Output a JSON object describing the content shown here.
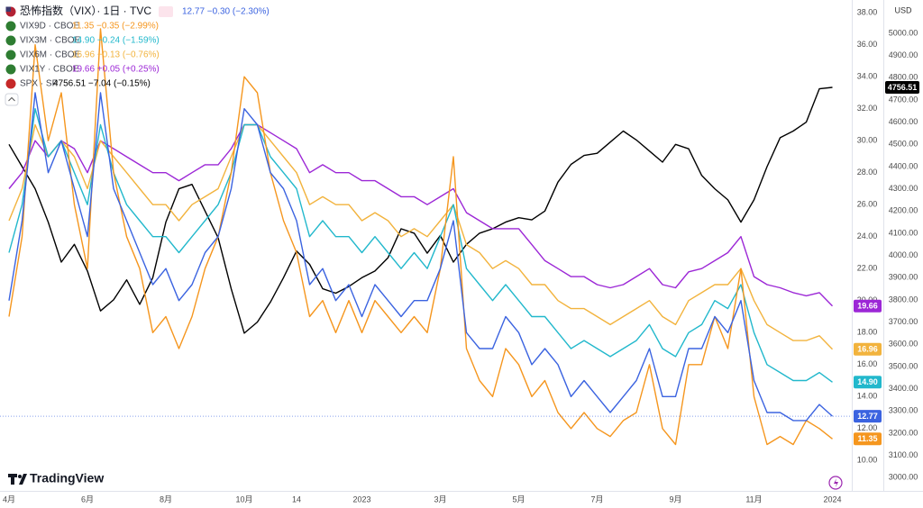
{
  "chart_data": {
    "type": "line",
    "currency": "USD",
    "logo": "TradingView",
    "grid": false,
    "categories": [
      "4月",
      null,
      null,
      null,
      null,
      null,
      "6月",
      null,
      null,
      null,
      null,
      null,
      "8月",
      null,
      null,
      null,
      null,
      null,
      "10月",
      null,
      null,
      null,
      "14",
      null,
      null,
      null,
      null,
      "2023",
      null,
      null,
      null,
      null,
      null,
      "3月",
      null,
      null,
      null,
      null,
      null,
      "5月",
      null,
      null,
      null,
      null,
      null,
      "7月",
      null,
      null,
      null,
      null,
      null,
      "9月",
      null,
      null,
      null,
      null,
      null,
      "11月",
      null,
      null,
      null,
      null,
      null,
      "2024"
    ],
    "ylim": [
      8.1,
      38.8
    ],
    "yticks": [
      {
        "value": 10,
        "label": "10.00"
      },
      {
        "value": 12,
        "label": "12.00"
      },
      {
        "value": 14,
        "label": "14.00"
      },
      {
        "value": 16,
        "label": "16.00"
      },
      {
        "value": 18,
        "label": "18.00"
      },
      {
        "value": 20,
        "label": "20.00"
      },
      {
        "value": 22,
        "label": "22.00"
      },
      {
        "value": 24,
        "label": "24.00"
      },
      {
        "value": 26,
        "label": "26.00"
      },
      {
        "value": 28,
        "label": "28.00"
      },
      {
        "value": 30,
        "label": "30.00"
      },
      {
        "value": 32,
        "label": "32.00"
      },
      {
        "value": 34,
        "label": "34.00"
      },
      {
        "value": 36,
        "label": "36.00"
      },
      {
        "value": 38,
        "label": "38.00"
      }
    ],
    "y2lim": [
      2940,
      5150
    ],
    "y2ticks": [
      {
        "value": 3000,
        "label": "3000.00"
      },
      {
        "value": 3100,
        "label": "3100.00"
      },
      {
        "value": 3200,
        "label": "3200.00"
      },
      {
        "value": 3300,
        "label": "3300.00"
      },
      {
        "value": 3400,
        "label": "3400.00"
      },
      {
        "value": 3500,
        "label": "3500.00"
      },
      {
        "value": 3600,
        "label": "3600.00"
      },
      {
        "value": 3700,
        "label": "3700.00"
      },
      {
        "value": 3800,
        "label": "3800.00"
      },
      {
        "value": 3900,
        "label": "3900.00"
      },
      {
        "value": 4000,
        "label": "4000.00"
      },
      {
        "value": 4100,
        "label": "4100.00"
      },
      {
        "value": 4200,
        "label": "4200.00"
      },
      {
        "value": 4300,
        "label": "4300.00"
      },
      {
        "value": 4400,
        "label": "4400.00"
      },
      {
        "value": 4500,
        "label": "4500.00"
      },
      {
        "value": 4600,
        "label": "4600.00"
      },
      {
        "value": 4700,
        "label": "4700.00"
      },
      {
        "value": 4800,
        "label": "4800.00"
      },
      {
        "value": 4900,
        "label": "4900.00"
      },
      {
        "value": 5000,
        "label": "5000.00"
      }
    ],
    "series": [
      {
        "name": "恐怖指数（VIX）· 1日 · TVC",
        "quote": "12.77 −0.30 (−2.30%)",
        "last_label": "12.77",
        "color": "#3b63e0",
        "values": [
          20,
          25,
          33,
          28,
          30,
          27,
          24,
          33,
          27,
          25,
          23,
          21,
          22,
          20,
          21,
          23,
          24,
          27,
          32,
          31,
          28,
          27,
          25,
          21,
          22,
          20,
          21,
          19,
          21,
          20,
          19,
          20,
          20,
          22,
          25,
          18,
          17,
          17,
          19,
          18,
          16,
          17,
          16,
          14,
          15,
          14,
          13,
          14,
          15,
          17,
          14,
          14,
          17,
          17,
          19,
          18,
          20,
          15,
          13,
          13,
          12.5,
          12.5,
          13.5,
          12.77
        ]
      },
      {
        "name": "VIX9D · CBOE",
        "quote": "11.35 −0.35 (−2.99%)",
        "last_label": "11.35",
        "color": "#f5961e",
        "values": [
          19,
          24,
          36,
          30,
          33,
          26,
          22,
          37,
          28,
          24,
          22,
          18,
          19,
          17,
          19,
          22,
          24,
          28,
          34,
          33,
          28,
          25,
          23,
          19,
          20,
          18,
          20,
          18,
          20,
          19,
          18,
          19,
          18,
          22,
          29,
          17,
          15,
          14,
          17,
          16,
          14,
          15,
          13,
          12,
          13,
          12,
          11.5,
          12.5,
          13,
          16,
          12,
          11,
          16,
          16,
          19,
          17,
          22,
          14,
          11,
          11.5,
          11,
          12.5,
          12,
          11.35
        ]
      },
      {
        "name": "VIX3M · CBOE",
        "quote": "14.90 −0.24 (−1.59%)",
        "last_label": "14.90",
        "color": "#22b8cc",
        "values": [
          23,
          26,
          32,
          29,
          30,
          28,
          26,
          31,
          28,
          26,
          25,
          24,
          24,
          23,
          24,
          25,
          26,
          28,
          31,
          31,
          29,
          28,
          27,
          24,
          25,
          24,
          24,
          23,
          24,
          23,
          22,
          23,
          22,
          24,
          26,
          22,
          21,
          20,
          21,
          20,
          19,
          19,
          18,
          17,
          17.5,
          17,
          16.5,
          17,
          17.5,
          18.5,
          17,
          16.5,
          18,
          18.5,
          20,
          19.5,
          21,
          18,
          16,
          15.5,
          15,
          15,
          15.5,
          14.9
        ]
      },
      {
        "name": "VIX6M · CBOE",
        "quote": "16.96 −0.13 (−0.76%)",
        "last_label": "16.96",
        "color": "#f2b33d",
        "values": [
          25,
          27,
          31,
          29,
          30,
          29,
          27,
          30,
          29,
          28,
          27,
          26,
          26,
          25,
          26,
          26.5,
          27,
          29,
          31,
          31,
          30,
          29,
          28,
          26,
          26.5,
          26,
          26,
          25,
          25.5,
          25,
          24,
          24.5,
          24,
          25,
          26,
          23.5,
          23,
          22,
          22.5,
          22,
          21,
          21,
          20,
          19.5,
          19.5,
          19,
          18.5,
          19,
          19.5,
          20,
          19,
          18.5,
          20,
          20.5,
          21,
          21,
          22,
          20,
          18.5,
          18,
          17.5,
          17.5,
          17.8,
          16.96
        ]
      },
      {
        "name": "VIX1Y · CBOE",
        "quote": "19.66 +0.05 (+0.25%)",
        "last_label": "19.66",
        "color": "#9c27d6",
        "values": [
          27,
          28,
          30,
          29,
          30,
          29.5,
          28,
          30,
          29.5,
          29,
          28.5,
          28,
          28,
          27.5,
          28,
          28.5,
          28.5,
          29.5,
          31,
          31,
          30.5,
          30,
          29.5,
          28,
          28.5,
          28,
          28,
          27.5,
          27.5,
          27,
          26.5,
          26.5,
          26,
          26.5,
          27,
          25.5,
          25,
          24.5,
          24.5,
          24.5,
          23.5,
          22.5,
          22,
          21.5,
          21.5,
          21,
          20.8,
          21,
          21.5,
          22,
          21,
          20.8,
          21.8,
          22,
          22.5,
          23,
          24,
          21.5,
          21,
          20.8,
          20.5,
          20.3,
          20.5,
          19.66
        ]
      },
      {
        "name": "SPX · SP",
        "quote": "4756.51 −7.04 (−0.15%)",
        "last_label": "4756.51",
        "color": "#000000",
        "axis": "y2",
        "values": [
          4500,
          4400,
          4300,
          4150,
          3970,
          4050,
          3930,
          3750,
          3800,
          3890,
          3780,
          3900,
          4150,
          4300,
          4320,
          4200,
          4080,
          3850,
          3650,
          3700,
          3790,
          3900,
          4020,
          3960,
          3850,
          3830,
          3860,
          3900,
          3930,
          3990,
          4120,
          4100,
          4010,
          4090,
          3970,
          4050,
          4100,
          4120,
          4150,
          4170,
          4160,
          4200,
          4330,
          4410,
          4450,
          4460,
          4510,
          4560,
          4520,
          4470,
          4420,
          4500,
          4480,
          4360,
          4300,
          4250,
          4150,
          4250,
          4400,
          4530,
          4560,
          4600,
          4750,
          4756.51
        ]
      }
    ]
  }
}
